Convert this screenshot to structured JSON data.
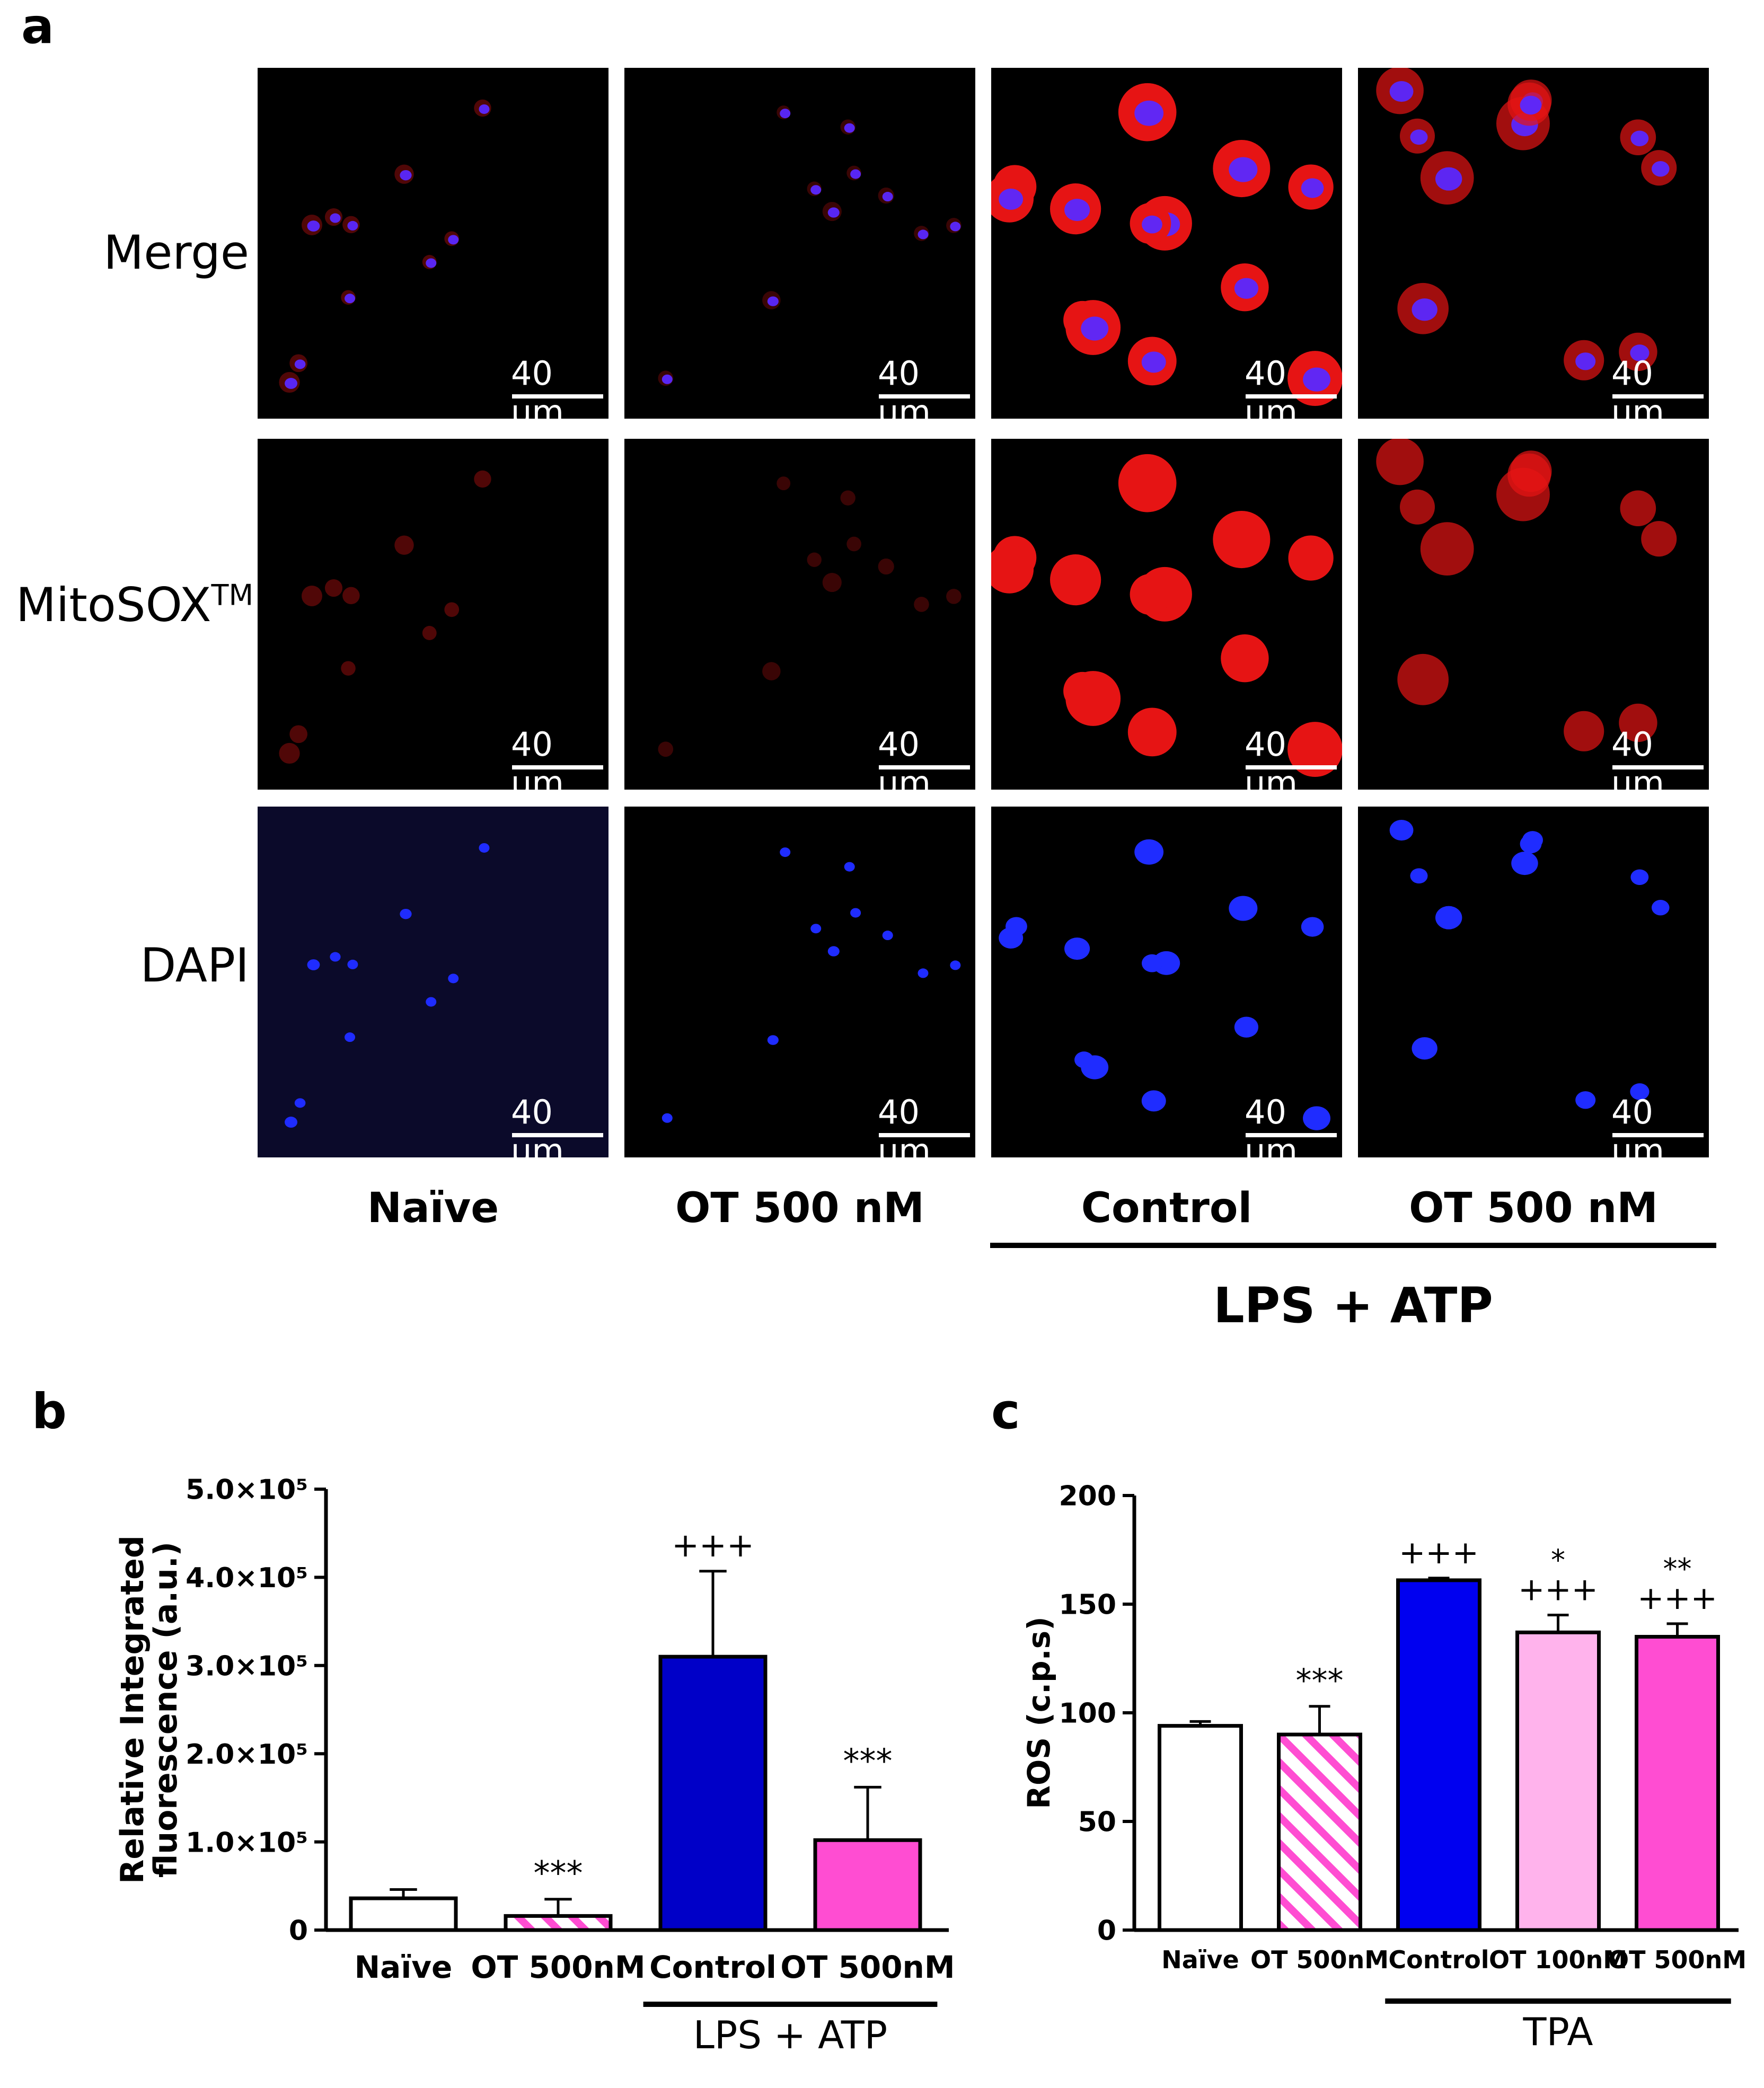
{
  "panel_a": {
    "letter": "a",
    "row_labels": [
      "Merge",
      "MitoSOX",
      "DAPI"
    ],
    "row_label_superscript": "TM",
    "scale_bar_text": "40 μm",
    "column_labels": [
      "Naïve",
      "OT 500 nM",
      "Control",
      "OT 500 nM"
    ],
    "group_label": "LPS + ATP"
  },
  "panel_b": {
    "letter": "b",
    "group_label": "LPS + ATP"
  },
  "panel_c": {
    "letter": "c",
    "group_label": "TPA"
  },
  "chart_data": [
    {
      "type": "bar",
      "panel": "b",
      "ylabel": "Relative Integrated fluorescence (a.u.)",
      "ylim": [
        0,
        500000
      ],
      "yticks": [
        0,
        100000,
        200000,
        300000,
        400000,
        500000
      ],
      "ytick_labels": [
        "0",
        "1.0×10⁵",
        "2.0×10⁵",
        "3.0×10⁵",
        "4.0×10⁵",
        "5.0×10⁵"
      ],
      "categories": [
        "Naïve",
        "OT 500nM",
        "Control",
        "OT 500nM"
      ],
      "values": [
        36000,
        16000,
        310000,
        102000
      ],
      "errors": [
        10000,
        19000,
        97000,
        60000
      ],
      "fills": [
        "#ffffff",
        "hatch-pink",
        "#0000c8",
        "#ff4dd2"
      ],
      "annotations": [
        "",
        "***",
        "+++",
        "***"
      ],
      "group_label": "LPS + ATP",
      "group_span": [
        2,
        3
      ],
      "grid": false
    },
    {
      "type": "bar",
      "panel": "c",
      "ylabel": "ROS (c.p.s)",
      "ylim": [
        0,
        200
      ],
      "yticks": [
        0,
        50,
        100,
        150,
        200
      ],
      "categories": [
        "Naïve",
        "OT 500nM",
        "Control",
        "OT 100nM",
        "OT 500nM"
      ],
      "values": [
        94,
        90,
        161,
        137,
        135
      ],
      "errors": [
        2,
        13,
        1,
        8,
        6
      ],
      "fills": [
        "#ffffff",
        "hatch-pink",
        "#0000f0",
        "#ffb3ec",
        "#ff4dd2"
      ],
      "annotations_top": [
        "",
        "***",
        "+++",
        "*",
        "**"
      ],
      "annotations_bottom": [
        "",
        "",
        "",
        "+++",
        "+++"
      ],
      "group_label": "TPA",
      "group_span": [
        2,
        4
      ],
      "grid": false
    }
  ]
}
